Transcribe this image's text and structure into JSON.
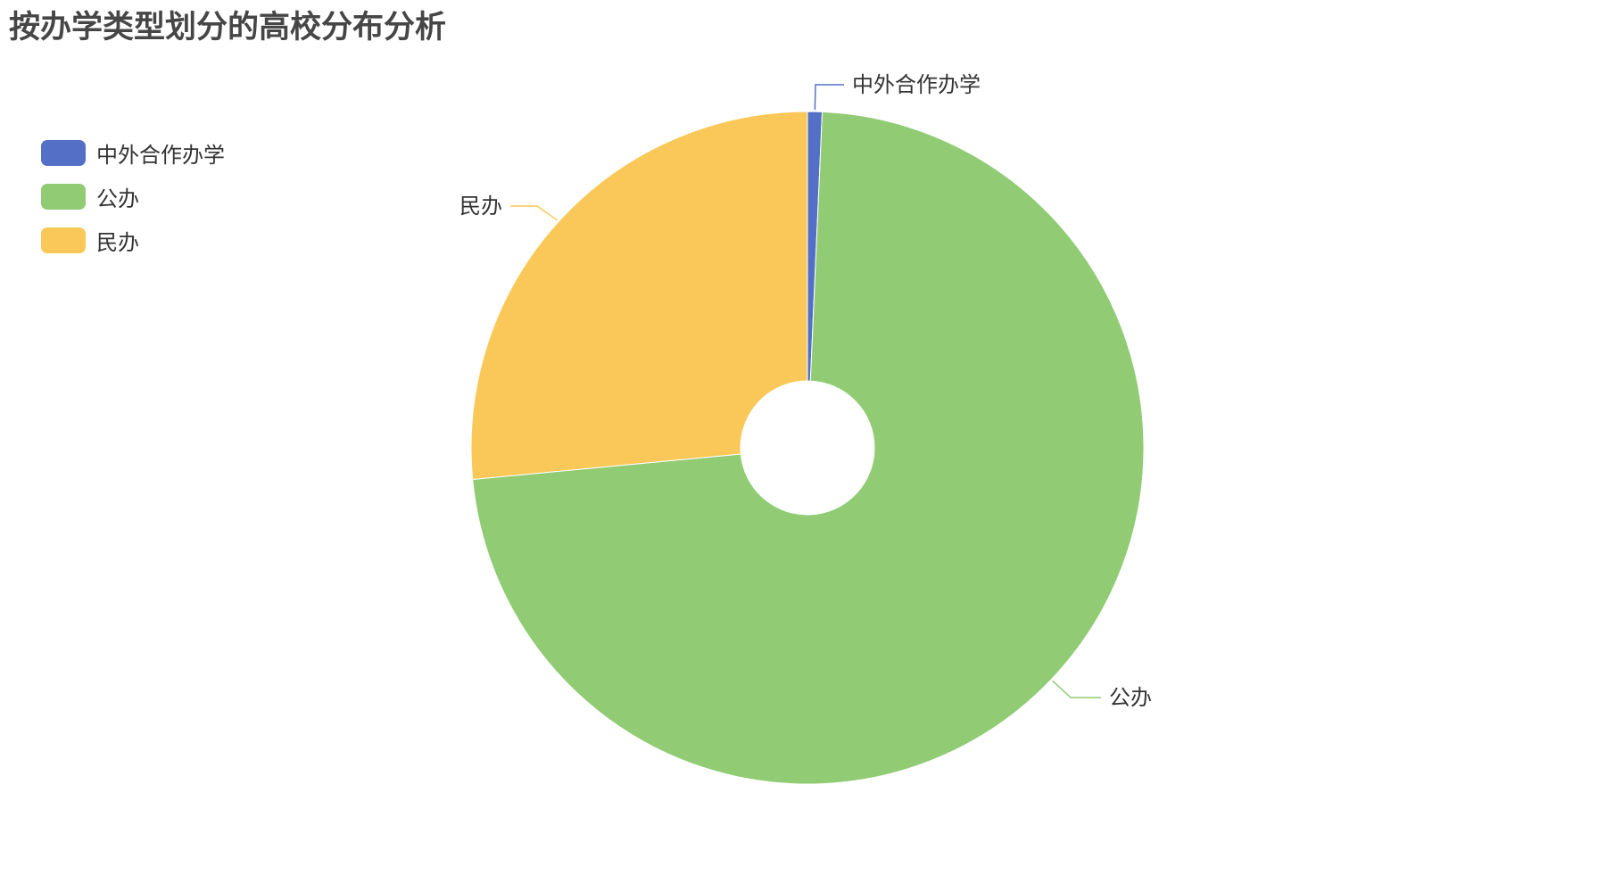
{
  "title": "按办学类型划分的高校分布分析",
  "chart_data": {
    "type": "pie",
    "title": "按办学类型划分的高校分布分析",
    "donut": true,
    "legend_position": "top-left",
    "slices": [
      {
        "label": "中外合作办学",
        "value": 0.7,
        "color": "#5470c6"
      },
      {
        "label": "公办",
        "value": 72.8,
        "color": "#91cc75"
      },
      {
        "label": "民办",
        "value": 26.5,
        "color": "#fac858"
      }
    ]
  }
}
